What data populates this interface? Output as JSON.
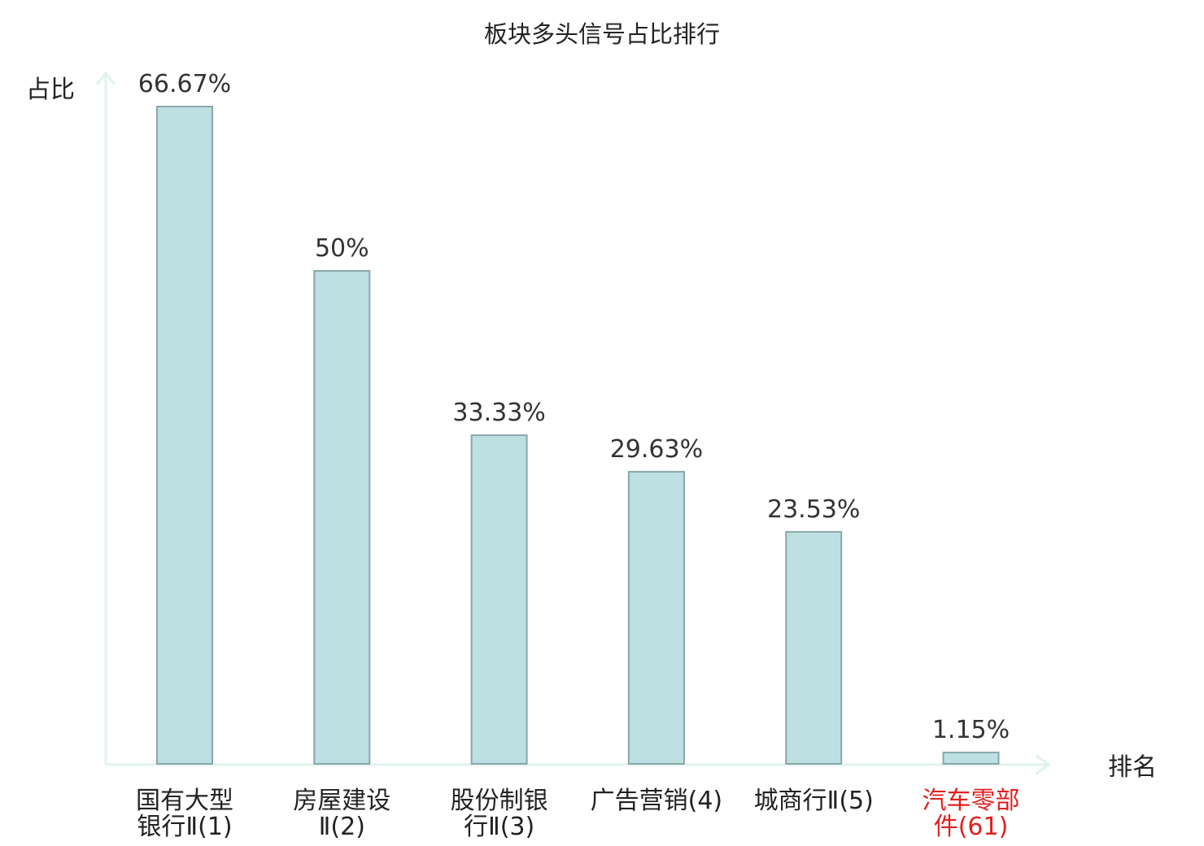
{
  "chart_data": {
    "type": "bar",
    "title": "板块多头信号占比排行",
    "ylabel": "占比",
    "xlabel": "排名",
    "categories": [
      [
        "国有大型",
        "银行Ⅱ(1)"
      ],
      [
        "房屋建设",
        "Ⅱ(2)"
      ],
      [
        "股份制银",
        "行Ⅱ(3)"
      ],
      [
        "广告营销(4)"
      ],
      [
        "城商行Ⅱ(5)"
      ],
      [
        "汽车零部",
        "件(61)"
      ]
    ],
    "values": [
      66.67,
      50,
      33.33,
      29.63,
      23.53,
      1.15
    ],
    "value_labels": [
      "66.67%",
      "50%",
      "33.33%",
      "29.63%",
      "23.53%",
      "1.15%"
    ],
    "highlight_index": 5,
    "ylim": [
      0,
      70
    ],
    "grid": false,
    "colors": {
      "bar_fill": "#bde0e3",
      "bar_stroke": "#8aa6a8",
      "axis": "#dff2ef",
      "highlight_text": "#e02020"
    }
  }
}
